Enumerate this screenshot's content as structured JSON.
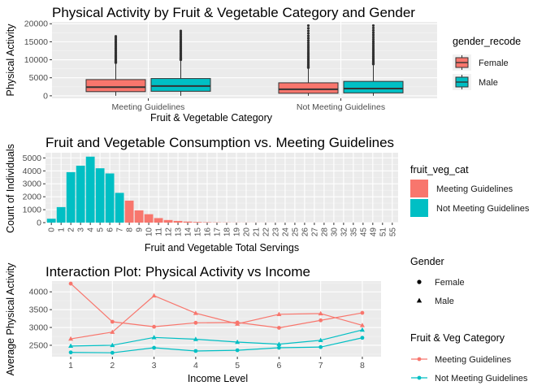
{
  "colors": {
    "female": "#F8766D",
    "male": "#00BFC4",
    "meeting": "#F8766D",
    "not_meeting": "#00BFC4",
    "panel_bg": "#EBEBEB",
    "grid_major": "#FFFFFF",
    "text_dark": "#1A1A1A",
    "axis_text": "#4D4D4D"
  },
  "chart_data": [
    {
      "type": "boxplot",
      "title": "Physical Activity by Fruit & Vegetable Category and Gender",
      "xlabel": "Fruit & Vegetable Category",
      "ylabel": "Physical Activity",
      "ylim": [
        -700,
        20500
      ],
      "yticks": [
        0,
        5000,
        10000,
        15000,
        20000
      ],
      "categories": [
        "Meeting Guidelines",
        "Not Meeting Guidelines"
      ],
      "legend": {
        "title": "gender_recode",
        "position": "right",
        "items": [
          "Female",
          "Male"
        ]
      },
      "groups": [
        "Female",
        "Male"
      ],
      "boxes": [
        {
          "category": "Meeting Guidelines",
          "group": "Female",
          "q1": 1150,
          "median": 2400,
          "q3": 4500,
          "whisker_low": 0,
          "whisker_high": 9200,
          "outlier_max": 16500
        },
        {
          "category": "Meeting Guidelines",
          "group": "Male",
          "q1": 1250,
          "median": 2700,
          "q3": 4800,
          "whisker_low": 0,
          "whisker_high": 10000,
          "outlier_max": 18000
        },
        {
          "category": "Not Meeting Guidelines",
          "group": "Female",
          "q1": 700,
          "median": 1800,
          "q3": 3600,
          "whisker_low": 0,
          "whisker_high": 7800,
          "outlier_max": 19500
        },
        {
          "category": "Not Meeting Guidelines",
          "group": "Male",
          "q1": 800,
          "median": 2000,
          "q3": 4000,
          "whisker_low": 0,
          "whisker_high": 8800,
          "outlier_max": 19500
        }
      ]
    },
    {
      "type": "bar",
      "title": "Fruit and Vegetable Consumption vs. Meeting Guidelines",
      "xlabel": "Fruit and Vegetable Total Servings",
      "ylabel": "Count of Individuals",
      "ylim": [
        0,
        5400
      ],
      "yticks": [
        0,
        1000,
        2000,
        3000,
        4000,
        5000
      ],
      "categories": [
        "0",
        "1",
        "2",
        "3",
        "4",
        "5",
        "6",
        "7",
        "8",
        "9",
        "10",
        "11",
        "12",
        "13",
        "14",
        "15",
        "16",
        "17",
        "18",
        "19",
        "20",
        "21",
        "22",
        "23",
        "24",
        "25",
        "26",
        "27",
        "28",
        "30",
        "32",
        "35",
        "45",
        "49",
        "51",
        "55"
      ],
      "values": [
        300,
        1200,
        3900,
        4400,
        5100,
        4200,
        3800,
        2300,
        1700,
        950,
        650,
        350,
        200,
        130,
        80,
        50,
        30,
        20,
        15,
        10,
        8,
        6,
        5,
        4,
        3,
        3,
        2,
        2,
        2,
        2,
        1,
        1,
        1,
        1,
        1,
        1
      ],
      "fill_group": [
        "Not Meeting Guidelines",
        "Not Meeting Guidelines",
        "Not Meeting Guidelines",
        "Not Meeting Guidelines",
        "Not Meeting Guidelines",
        "Not Meeting Guidelines",
        "Not Meeting Guidelines",
        "Not Meeting Guidelines",
        "Meeting Guidelines",
        "Meeting Guidelines",
        "Meeting Guidelines",
        "Meeting Guidelines",
        "Meeting Guidelines",
        "Meeting Guidelines",
        "Meeting Guidelines",
        "Meeting Guidelines",
        "Meeting Guidelines",
        "Meeting Guidelines",
        "Meeting Guidelines",
        "Meeting Guidelines",
        "Meeting Guidelines",
        "Meeting Guidelines",
        "Meeting Guidelines",
        "Meeting Guidelines",
        "Meeting Guidelines",
        "Meeting Guidelines",
        "Meeting Guidelines",
        "Meeting Guidelines",
        "Meeting Guidelines",
        "Meeting Guidelines",
        "Meeting Guidelines",
        "Meeting Guidelines",
        "Meeting Guidelines",
        "Meeting Guidelines",
        "Meeting Guidelines",
        "Meeting Guidelines"
      ],
      "legend": {
        "title": "fruit_veg_cat",
        "position": "right",
        "items": [
          "Meeting Guidelines",
          "Not Meeting Guidelines"
        ]
      }
    },
    {
      "type": "line",
      "title": "Interaction Plot: Physical Activity vs Income",
      "xlabel": "Income Level",
      "ylabel": "Average Physical Activity",
      "x": [
        1,
        2,
        3,
        4,
        5,
        6,
        7,
        8
      ],
      "xlim": [
        0.55,
        8.45
      ],
      "ylim": [
        2180,
        4300
      ],
      "yticks": [
        2500,
        3000,
        3500,
        4000
      ],
      "series": [
        {
          "name": "Meeting Guidelines",
          "gender": "Female",
          "values": [
            4230,
            3160,
            3020,
            3130,
            3140,
            2990,
            3200,
            3410
          ]
        },
        {
          "name": "Meeting Guidelines",
          "gender": "Male",
          "values": [
            2680,
            2870,
            3890,
            3400,
            3100,
            3370,
            3390,
            3060
          ]
        },
        {
          "name": "Not Meeting Guidelines",
          "gender": "Female",
          "values": [
            2300,
            2290,
            2430,
            2340,
            2360,
            2430,
            2450,
            2710
          ]
        },
        {
          "name": "Not Meeting Guidelines",
          "gender": "Male",
          "values": [
            2480,
            2500,
            2720,
            2670,
            2590,
            2530,
            2640,
            2930
          ]
        }
      ],
      "legend_gender": {
        "title": "Gender",
        "position": "right",
        "items": [
          "Female",
          "Male"
        ]
      },
      "legend_category": {
        "title": "Fruit & Veg Category",
        "position": "right",
        "items": [
          "Meeting Guidelines",
          "Not Meeting Guidelines"
        ]
      }
    }
  ]
}
